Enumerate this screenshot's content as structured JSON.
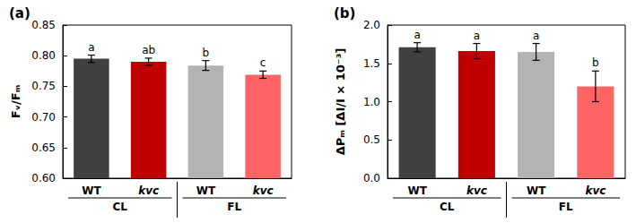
{
  "chart_data": [
    {
      "type": "bar",
      "title": "(a)",
      "y_label": "Fᵥ/Fₘ",
      "categories": [
        "WT",
        "kvc",
        "WT",
        "kvc"
      ],
      "values": [
        0.795,
        0.79,
        0.784,
        0.769
      ],
      "errors": [
        0.006,
        0.006,
        0.008,
        0.006
      ],
      "annotations": [
        "a",
        "ab",
        "b",
        "c"
      ],
      "groups": [
        {
          "label": "CL",
          "span": 2
        },
        {
          "label": "FL",
          "span": 2
        }
      ],
      "colors": [
        "#404040",
        "#c00000",
        "#b3b3b3",
        "#ff6464"
      ],
      "ylim": [
        0.6,
        0.85
      ],
      "yticks": [
        {
          "value": 0.6,
          "label": "0.60"
        },
        {
          "value": 0.65,
          "label": "0.65"
        },
        {
          "value": 0.7,
          "label": "0.70"
        },
        {
          "value": 0.75,
          "label": "0.75"
        },
        {
          "value": 0.8,
          "label": "0.80"
        },
        {
          "value": 0.85,
          "label": "0.85"
        }
      ],
      "grid": false
    },
    {
      "type": "bar",
      "title": "(b)",
      "y_label": "ΔPₘ [ΔI/I × 10⁻³]",
      "categories": [
        "WT",
        "kvc",
        "WT",
        "kvc"
      ],
      "values": [
        1.71,
        1.66,
        1.65,
        1.2
      ],
      "errors": [
        0.06,
        0.1,
        0.11,
        0.2
      ],
      "annotations": [
        "a",
        "a",
        "a",
        "b"
      ],
      "groups": [
        {
          "label": "CL",
          "span": 2
        },
        {
          "label": "FL",
          "span": 2
        }
      ],
      "colors": [
        "#404040",
        "#c00000",
        "#b3b3b3",
        "#ff6464"
      ],
      "ylim": [
        0,
        2
      ],
      "yticks": [
        {
          "value": 0,
          "label": "0.0"
        },
        {
          "value": 0.5,
          "label": "0.5"
        },
        {
          "value": 1,
          "label": "1.0"
        },
        {
          "value": 1.5,
          "label": "1.5"
        },
        {
          "value": 2,
          "label": "2.0"
        }
      ],
      "grid": false
    }
  ]
}
